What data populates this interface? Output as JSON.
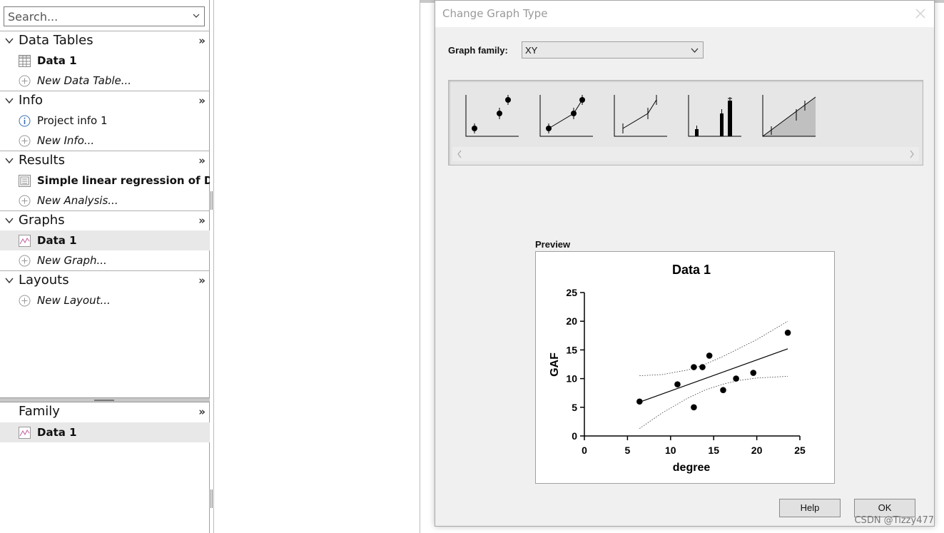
{
  "navigator": {
    "search_placeholder": "Search...",
    "sections": [
      {
        "title": "Data Tables",
        "items": [
          {
            "label": "Data 1",
            "icon": "data-table-icon"
          },
          {
            "label": "New Data Table...",
            "icon": "add-circle-icon"
          }
        ]
      },
      {
        "title": "Info",
        "items": [
          {
            "label": "Project info 1",
            "icon": "info-icon"
          },
          {
            "label": "New Info...",
            "icon": "add-circle-icon"
          }
        ]
      },
      {
        "title": "Results",
        "items": [
          {
            "label": "Simple linear regression of Da...",
            "icon": "results-icon"
          },
          {
            "label": "New Analysis...",
            "icon": "add-circle-icon"
          }
        ]
      },
      {
        "title": "Graphs",
        "items": [
          {
            "label": "Data 1",
            "icon": "graph-icon"
          },
          {
            "label": "New Graph...",
            "icon": "add-circle-icon"
          }
        ]
      },
      {
        "title": "Layouts",
        "items": [
          {
            "label": "New Layout...",
            "icon": "add-circle-icon"
          }
        ]
      }
    ],
    "more_glyph": "»",
    "family": {
      "title": "Family",
      "items": [
        {
          "label": "Data 1",
          "icon": "graph-icon"
        }
      ]
    }
  },
  "dialog": {
    "title": "Change Graph Type",
    "graph_family_label": "Graph family:",
    "graph_family_value": "XY",
    "gallery_thumbnails": [
      "points-only",
      "points-connected",
      "line-with-error-bars",
      "spikes-and-bars",
      "area-fill"
    ],
    "preview_label": "Preview",
    "help_label": "Help",
    "ok_label": "OK"
  },
  "chart_data": {
    "type": "scatter",
    "title": "Data 1",
    "xlabel": "degree",
    "ylabel": "GAF",
    "xlim": [
      0,
      25
    ],
    "ylim": [
      0,
      25
    ],
    "xticks": [
      0,
      5,
      10,
      15,
      20,
      25
    ],
    "yticks": [
      0,
      5,
      10,
      15,
      20,
      25
    ],
    "points": [
      {
        "x": 6.4,
        "y": 6
      },
      {
        "x": 10.8,
        "y": 9
      },
      {
        "x": 12.7,
        "y": 12
      },
      {
        "x": 12.7,
        "y": 5
      },
      {
        "x": 13.7,
        "y": 12
      },
      {
        "x": 14.5,
        "y": 14
      },
      {
        "x": 16.1,
        "y": 8
      },
      {
        "x": 17.6,
        "y": 10
      },
      {
        "x": 19.6,
        "y": 11
      },
      {
        "x": 23.6,
        "y": 18
      }
    ],
    "regression_line": {
      "x": [
        6.4,
        23.6
      ],
      "y": [
        5.9,
        15.2
      ]
    },
    "confidence_band_upper": {
      "x": [
        6.4,
        9,
        12,
        14,
        16,
        18,
        20,
        23.6
      ],
      "y": [
        10.5,
        10.7,
        11.5,
        12.5,
        13.8,
        15.3,
        16.8,
        20.0
      ]
    },
    "confidence_band_lower": {
      "x": [
        6.4,
        9,
        12,
        14,
        16,
        18,
        20,
        23.6
      ],
      "y": [
        1.3,
        4.0,
        6.6,
        8.0,
        9.0,
        9.7,
        10.1,
        10.4
      ]
    },
    "grid": false
  },
  "watermark": "CSDN @Tizzy477"
}
